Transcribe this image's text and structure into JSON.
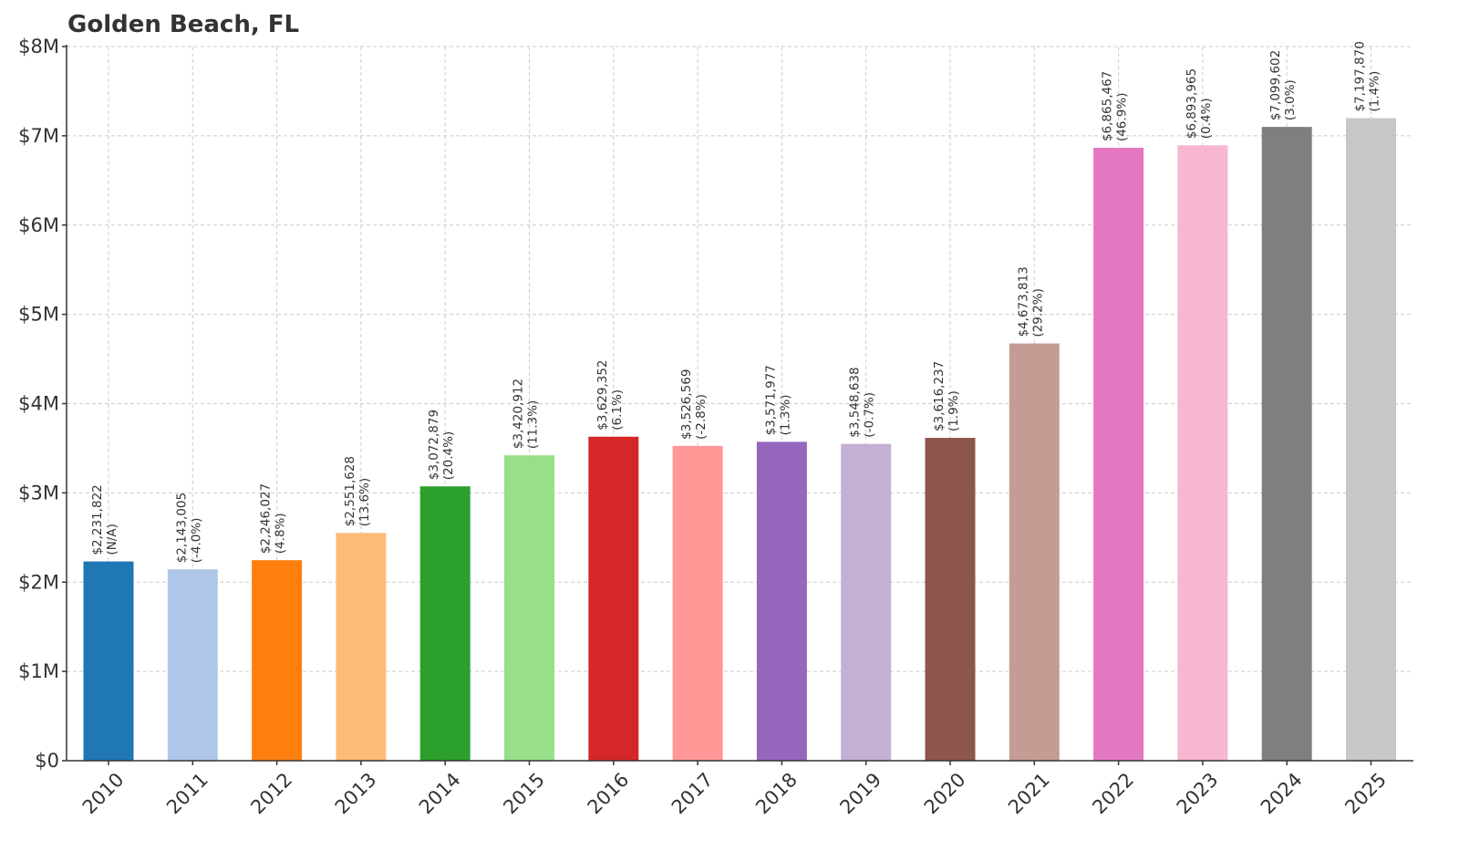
{
  "chart_data": {
    "type": "bar",
    "title": "Golden Beach, FL",
    "xlabel": "",
    "ylabel": "",
    "ylim": [
      0,
      8000000
    ],
    "yticks": [
      0,
      1000000,
      2000000,
      3000000,
      4000000,
      5000000,
      6000000,
      7000000,
      8000000
    ],
    "ytick_labels": [
      "$0",
      "$1M",
      "$2M",
      "$3M",
      "$4M",
      "$5M",
      "$6M",
      "$7M",
      "$8M"
    ],
    "grid": true,
    "categories": [
      "2010",
      "2011",
      "2012",
      "2013",
      "2014",
      "2015",
      "2016",
      "2017",
      "2018",
      "2019",
      "2020",
      "2021",
      "2022",
      "2023",
      "2024",
      "2025"
    ],
    "values": [
      2231822,
      2143005,
      2246027,
      2551628,
      3072879,
      3420912,
      3629352,
      3526569,
      3571977,
      3548638,
      3616237,
      4673813,
      6865467,
      6893965,
      7099602,
      7197870
    ],
    "value_labels": [
      "$2,231,822",
      "$2,143,005",
      "$2,246,027",
      "$2,551,628",
      "$3,072,879",
      "$3,420,912",
      "$3,629,352",
      "$3,526,569",
      "$3,571,977",
      "$3,548,638",
      "$3,616,237",
      "$4,673,813",
      "$6,865,467",
      "$6,893,965",
      "$7,099,602",
      "$7,197,870"
    ],
    "change_labels": [
      "(N/A)",
      "(-4.0%)",
      "(4.8%)",
      "(13.6%)",
      "(20.4%)",
      "(11.3%)",
      "(6.1%)",
      "(-2.8%)",
      "(1.3%)",
      "(-0.7%)",
      "(1.9%)",
      "(29.2%)",
      "(46.9%)",
      "(0.4%)",
      "(3.0%)",
      "(1.4%)"
    ],
    "colors": [
      "#1f77b4",
      "#aec7e8",
      "#ff7f0e",
      "#ffbb78",
      "#2ca02c",
      "#98df8a",
      "#d62728",
      "#ff9896",
      "#9467bd",
      "#c5b0d5",
      "#8c564b",
      "#c49c94",
      "#e377c2",
      "#f7b6d2",
      "#7f7f7f",
      "#c7c7c7"
    ]
  }
}
